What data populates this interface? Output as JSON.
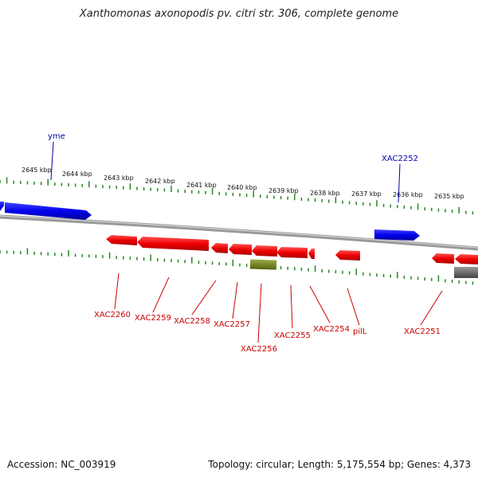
{
  "title": "Xanthomonas axonopodis pv. citri str. 306, complete genome",
  "footer": {
    "accession": "Accession: NC_003919",
    "summary": "Topology: circular; Length: 5,175,554 bp; Genes: 4,373"
  },
  "colors": {
    "plus_strand": "#1111dd",
    "minus_strand": "#ee1111",
    "other_feature": "#667722",
    "grey_feature": "#666666",
    "backbone": "#888888",
    "ticks": "#228822",
    "plus_label": "#0000aa",
    "minus_label": "#cc0000"
  },
  "scale_labels": [
    "2645 kbp",
    "2644 kbp",
    "2643 kbp",
    "2642 kbp",
    "2641 kbp",
    "2640 kbp",
    "2639 kbp",
    "2638 kbp",
    "2637 kbp",
    "2636 kbp",
    "2635 kbp"
  ],
  "plus_labels": [
    "yme",
    "XAC2252"
  ],
  "minus_labels": [
    "XAC2260",
    "XAC2259",
    "XAC2258",
    "XAC2257",
    "XAC2256",
    "XAC2255",
    "XAC2254",
    "pilL",
    "XAC2251"
  ]
}
